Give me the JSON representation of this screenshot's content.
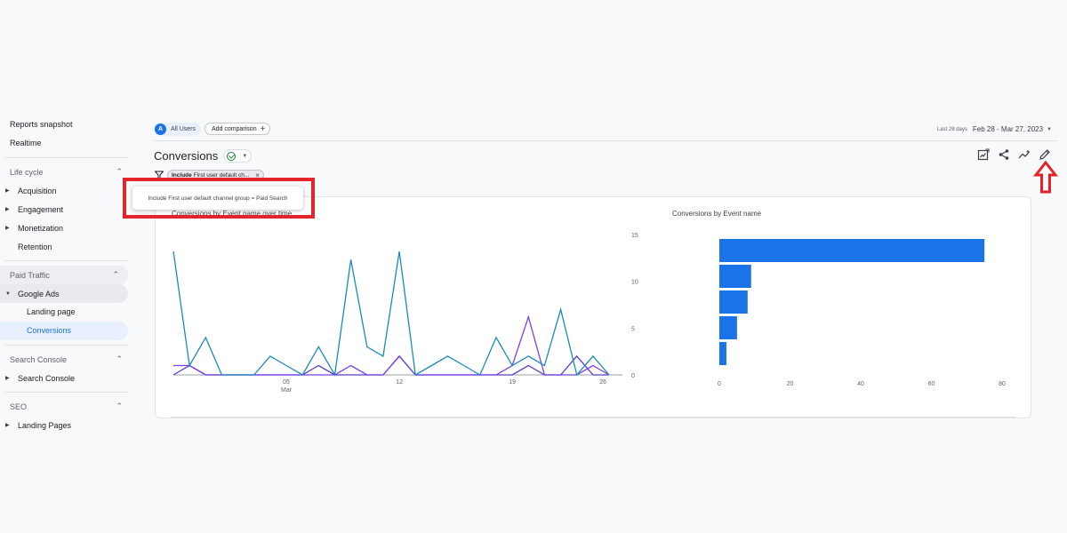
{
  "sidebar": {
    "top_items": [
      "Reports snapshot",
      "Realtime"
    ],
    "lifecycle": {
      "label": "Life cycle",
      "items": [
        "Acquisition",
        "Engagement",
        "Monetization",
        "Retention"
      ]
    },
    "paid_traffic": {
      "label": "Paid Traffic",
      "parent": "Google Ads",
      "children": [
        "Landing page",
        "Conversions"
      ]
    },
    "search_console": {
      "label": "Search Console",
      "items": [
        "Search Console"
      ]
    },
    "seo": {
      "label": "SEO",
      "items": [
        "Landing Pages"
      ]
    }
  },
  "topbar": {
    "segment_avatar": "A",
    "segment_label": "All Users",
    "add_comparison": "Add comparison",
    "date_hint": "Last 28 days",
    "date_range": "Feb 28 - Mar 27, 2023"
  },
  "header": {
    "title": "Conversions",
    "filter_include": "Include",
    "filter_text": "First user default ch..."
  },
  "tooltip": {
    "text": "Include First user default channel group = Paid Search"
  },
  "charts": {
    "line_title": "Conversions by Event name over time",
    "bar_title": "Conversions by Event name"
  },
  "colors": {
    "accent": "#1a73e8",
    "highlight": "#e3242b",
    "series_teal": "#1a8bb9",
    "series_purple": "#7b3fe4",
    "series_indigo": "#5b3cc4",
    "bar": "#1a73e8"
  },
  "icons": [
    "filter-icon",
    "check-circle-icon",
    "customize-report-icon",
    "share-icon",
    "insights-icon",
    "edit-pencil-icon",
    "arrow-up-icon"
  ],
  "chart_data": [
    {
      "type": "line",
      "title": "Conversions by Event name over time",
      "x": [
        28,
        1,
        2,
        3,
        4,
        5,
        6,
        7,
        8,
        9,
        10,
        11,
        12,
        13,
        14,
        15,
        16,
        17,
        18,
        19,
        20,
        21,
        22,
        23,
        24,
        25,
        26,
        27
      ],
      "x_tick_labels": [
        "05",
        "Mar",
        "12",
        "19",
        "26"
      ],
      "ylim": [
        0,
        15
      ],
      "y_ticks": [
        0,
        5,
        10,
        15
      ],
      "series": [
        {
          "values": [
            13.2,
            1,
            4,
            0,
            0,
            0,
            2,
            1,
            0,
            3,
            0,
            12.3,
            3,
            2,
            13.2,
            0,
            1,
            2,
            1,
            0,
            4,
            1,
            2,
            1,
            7,
            0,
            2,
            0
          ]
        },
        {
          "values": [
            1,
            1,
            0,
            0,
            0,
            0,
            0,
            0,
            0,
            0,
            0,
            1,
            0,
            0,
            2,
            0,
            0,
            0,
            0,
            0,
            0,
            1,
            6.2,
            0,
            0,
            0,
            1,
            0
          ]
        },
        {
          "values": [
            0,
            1,
            0,
            0,
            0,
            0,
            0,
            0,
            0,
            1,
            0,
            0,
            0,
            0,
            2,
            0,
            0,
            0,
            0,
            0,
            0,
            0,
            1,
            0,
            0,
            2,
            0,
            0
          ]
        }
      ],
      "grid": false
    },
    {
      "type": "bar",
      "orientation": "horizontal",
      "title": "Conversions by Event name",
      "values": [
        75,
        9,
        8,
        5,
        2
      ],
      "xlim": [
        0,
        80
      ],
      "x_ticks": [
        0,
        20,
        40,
        60,
        80
      ]
    }
  ]
}
